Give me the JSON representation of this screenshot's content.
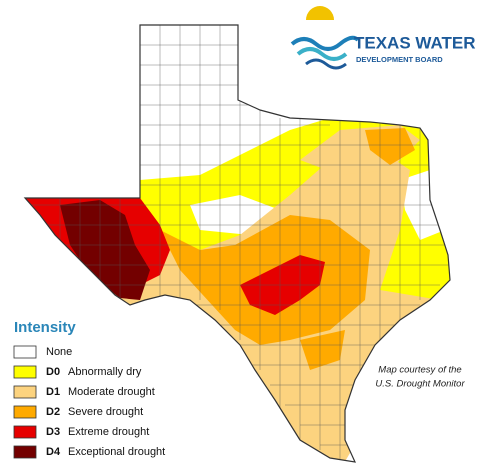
{
  "logo": {
    "line1": "TEXAS WATER",
    "line2": "DEVELOPMENT BOARD"
  },
  "legend": {
    "title": "Intensity",
    "items": [
      {
        "label": "None",
        "color": "#ffffff"
      },
      {
        "code": "D0",
        "label": "Abnormally dry",
        "color": "#ffff00"
      },
      {
        "code": "D1",
        "label": "Moderate drought",
        "color": "#fcd37f"
      },
      {
        "code": "D2",
        "label": "Severe drought",
        "color": "#ffaa00"
      },
      {
        "code": "D3",
        "label": "Extreme drought",
        "color": "#e60000"
      },
      {
        "code": "D4",
        "label": "Exceptional drought",
        "color": "#730000"
      }
    ]
  },
  "credit": {
    "line1": "Map courtesy of the",
    "line2": "U.S. Drought Monitor"
  }
}
